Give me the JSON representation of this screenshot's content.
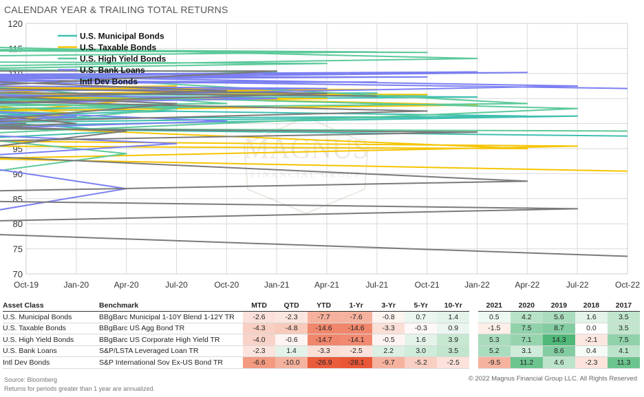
{
  "title": "CALENDAR YEAR & TRAILING TOTAL RETURNS",
  "watermark": {
    "line1": "MAGNUS",
    "line2": "FINANCIAL GROUP"
  },
  "chart_data": {
    "type": "line",
    "ylim": [
      70,
      120
    ],
    "yticks": [
      70,
      75,
      80,
      85,
      90,
      95,
      100,
      105,
      110,
      115,
      120
    ],
    "xticks": [
      "Oct-19",
      "Jan-20",
      "Apr-20",
      "Jul-20",
      "Oct-20",
      "Jan-21",
      "Apr-21",
      "Jul-21",
      "Oct-21",
      "Jan-22",
      "Apr-22",
      "Jul-22",
      "Oct-22"
    ],
    "grid": true,
    "legend_position": "top-left",
    "series": [
      {
        "name": "U.S.  Municipal Bonds",
        "color": "#3fbfb0",
        "x": [
          "Oct-19",
          "Nov-19",
          "Dec-19",
          "Jan-20",
          "Feb-20",
          "Mar-20",
          "Apr-20",
          "May-20",
          "Jun-20",
          "Jul-20",
          "Aug-20",
          "Sep-20",
          "Oct-20",
          "Nov-20",
          "Dec-20",
          "Jan-21",
          "Feb-21",
          "Mar-21",
          "Apr-21",
          "May-21",
          "Jun-21",
          "Jul-21",
          "Aug-21",
          "Sep-21",
          "Oct-21",
          "Nov-21",
          "Dec-21",
          "Jan-22",
          "Feb-22",
          "Mar-22",
          "Apr-22",
          "May-22",
          "Jun-22",
          "Jul-22",
          "Aug-22",
          "Sep-22",
          "Oct-22"
        ],
        "values": [
          100,
          100.3,
          100.6,
          101.5,
          102.2,
          97,
          98.5,
          100.5,
          101.5,
          102.5,
          102.8,
          103,
          103.3,
          104,
          104.6,
          105,
          104.9,
          104.8,
          105.2,
          105.5,
          105.8,
          106.1,
          106,
          105.8,
          105.7,
          105.8,
          106,
          105.3,
          104.6,
          103,
          101.5,
          100.2,
          99.5,
          101.5,
          101,
          99,
          97.5
        ]
      },
      {
        "name": "U.S. Taxable Bonds",
        "color": "#f5c400",
        "x": [
          "Oct-19",
          "Nov-19",
          "Dec-19",
          "Jan-20",
          "Feb-20",
          "Mar-20",
          "Apr-20",
          "May-20",
          "Jun-20",
          "Jul-20",
          "Aug-20",
          "Sep-20",
          "Oct-20",
          "Nov-20",
          "Dec-20",
          "Jan-21",
          "Feb-21",
          "Mar-21",
          "Apr-21",
          "May-21",
          "Jun-21",
          "Jul-21",
          "Aug-21",
          "Sep-21",
          "Oct-21",
          "Nov-21",
          "Dec-21",
          "Jan-22",
          "Feb-22",
          "Mar-22",
          "Apr-22",
          "May-22",
          "Jun-22",
          "Jul-22",
          "Aug-22",
          "Sep-22",
          "Oct-22"
        ],
        "values": [
          100,
          100,
          100.2,
          102,
          103.8,
          102,
          104.5,
          105.5,
          106,
          107.5,
          107,
          107.2,
          106.5,
          107.5,
          107.5,
          106.8,
          105.5,
          104.3,
          105,
          105.2,
          105.8,
          106.8,
          106.7,
          106,
          105.8,
          106,
          106,
          103.7,
          102.5,
          99.5,
          95,
          95.5,
          93,
          95.5,
          96.5,
          93,
          90.5
        ]
      },
      {
        "name": "U.S. High Yield Bonds",
        "color": "#5cc99a",
        "x": [
          "Oct-19",
          "Nov-19",
          "Dec-19",
          "Jan-20",
          "Feb-20",
          "Mar-20",
          "Apr-20",
          "May-20",
          "Jun-20",
          "Jul-20",
          "Aug-20",
          "Sep-20",
          "Oct-20",
          "Nov-20",
          "Dec-20",
          "Jan-21",
          "Feb-21",
          "Mar-21",
          "Apr-21",
          "May-21",
          "Jun-21",
          "Jul-21",
          "Aug-21",
          "Sep-21",
          "Oct-21",
          "Nov-21",
          "Dec-21",
          "Jan-22",
          "Feb-22",
          "Mar-22",
          "Apr-22",
          "May-22",
          "Jun-22",
          "Jul-22",
          "Aug-22",
          "Sep-22",
          "Oct-22"
        ],
        "values": [
          100,
          100.3,
          101,
          102,
          102.5,
          90,
          94,
          97,
          99.5,
          103,
          104.2,
          103.5,
          104,
          107.5,
          109,
          110.3,
          110.8,
          111,
          112,
          112.3,
          113.5,
          114.3,
          114.8,
          114.5,
          114.2,
          114.8,
          115.3,
          113,
          111.5,
          110,
          104,
          103,
          98,
          103,
          106,
          99,
          98.5
        ]
      },
      {
        "name": "U.S. Bank Loans",
        "color": "#7b7ff2",
        "x": [
          "Oct-19",
          "Nov-19",
          "Dec-19",
          "Jan-20",
          "Feb-20",
          "Mar-20",
          "Apr-20",
          "May-20",
          "Jun-20",
          "Jul-20",
          "Aug-20",
          "Sep-20",
          "Oct-20",
          "Nov-20",
          "Dec-20",
          "Jan-21",
          "Feb-21",
          "Mar-21",
          "Apr-21",
          "May-21",
          "Jun-21",
          "Jul-21",
          "Aug-21",
          "Sep-21",
          "Oct-21",
          "Nov-21",
          "Dec-21",
          "Jan-22",
          "Feb-22",
          "Mar-22",
          "Apr-22",
          "May-22",
          "Jun-22",
          "Jul-22",
          "Aug-22",
          "Sep-22",
          "Oct-22"
        ],
        "values": [
          100,
          100.3,
          100.5,
          101.3,
          101.6,
          82,
          87,
          91.5,
          93.5,
          96,
          97.7,
          99,
          100.5,
          102.5,
          104,
          105,
          105.8,
          106.5,
          107,
          107.5,
          108,
          108.3,
          108.5,
          108.9,
          109.3,
          109.3,
          109.8,
          110.3,
          109.7,
          109.5,
          110.2,
          109,
          105.3,
          107.5,
          109.5,
          108.8,
          107
        ]
      },
      {
        "name": "Intl Dev Bonds",
        "color": "#7a7a7a",
        "x": [
          "Oct-19",
          "Nov-19",
          "Dec-19",
          "Jan-20",
          "Feb-20",
          "Mar-20",
          "Apr-20",
          "May-20",
          "Jun-20",
          "Jul-20",
          "Aug-20",
          "Sep-20",
          "Oct-20",
          "Nov-20",
          "Dec-20",
          "Jan-21",
          "Feb-21",
          "Mar-21",
          "Apr-21",
          "May-21",
          "Jun-21",
          "Jul-21",
          "Aug-21",
          "Sep-21",
          "Oct-21",
          "Nov-21",
          "Dec-21",
          "Jan-22",
          "Feb-22",
          "Mar-22",
          "Apr-22",
          "May-22",
          "Jun-22",
          "Jul-22",
          "Aug-22",
          "Sep-22",
          "Oct-22"
        ],
        "values": [
          100,
          99.5,
          99.2,
          100,
          102,
          95,
          98.5,
          99.5,
          100.5,
          104,
          105.5,
          105,
          106.5,
          108.5,
          110.5,
          110.5,
          107.5,
          104,
          106,
          107,
          106.2,
          105.5,
          106.2,
          104.5,
          102.5,
          100.3,
          99,
          98.3,
          96.5,
          93.5,
          88.5,
          86.5,
          80.5,
          83,
          84.5,
          78,
          73.5
        ]
      }
    ]
  },
  "table": {
    "headers": [
      "Asset Class",
      "Benchmark",
      "MTD",
      "QTD",
      "YTD",
      "1-Yr",
      "3-Yr",
      "5-Yr",
      "10-Yr",
      "2021",
      "2020",
      "2019",
      "2018",
      "2017"
    ],
    "rows": [
      {
        "asset": "U.S. Municipal Bonds",
        "benchmark": "BBgBarc Municipal 1-10Y Blend 1-12Y TR",
        "values": [
          "-2.6",
          "-2.3",
          "-7.7",
          "-7.6",
          "-0.8",
          "0.7",
          "1.4",
          "0.5",
          "4.2",
          "5.6",
          "1.6",
          "3.5"
        ],
        "colors": [
          "#fbe1d9",
          "#fbe6df",
          "#f5b19d",
          "#f5b29e",
          "#fdf3ef",
          "#eaf6ef",
          "#e3f3e9",
          "#eef8f2",
          "#b9e3c8",
          "#aadcbe",
          "#e3f3e9",
          "#c1e6cd"
        ]
      },
      {
        "asset": "U.S. Taxable Bonds",
        "benchmark": "BBgBarc US Agg Bond TR",
        "values": [
          "-4.3",
          "-4.8",
          "-14.6",
          "-14.6",
          "-3.3",
          "-0.3",
          "0.9",
          "-1.5",
          "7.5",
          "8.7",
          "0.0",
          "3.5"
        ],
        "colors": [
          "#f8cfc2",
          "#f7cab9",
          "#f0876c",
          "#f0876c",
          "#fbdfd6",
          "#fef8f6",
          "#eaf6ef",
          "#fdeee8",
          "#91d2ab",
          "#84cca2",
          "#ffffff",
          "#c1e6cd"
        ]
      },
      {
        "asset": "U.S. High Yield Bonds",
        "benchmark": "BBgBarc US Corporate High Yield TR",
        "values": [
          "-4.0",
          "-0.6",
          "-14.7",
          "-14.1",
          "-0.5",
          "1.6",
          "3.9",
          "5.3",
          "7.1",
          "14.3",
          "-2.1",
          "7.5"
        ],
        "colors": [
          "#f9d3c7",
          "#fef4f1",
          "#f0866b",
          "#f18a70",
          "#fef5f2",
          "#e3f3e9",
          "#c6e8d1",
          "#a9dbbd",
          "#96d4ae",
          "#4fb878",
          "#fce7e0",
          "#91d2ab"
        ]
      },
      {
        "asset": "U.S. Bank Loans",
        "benchmark": "S&P/LSTA Leveraged Loan TR",
        "values": [
          "-2.3",
          "1.4",
          "-3.3",
          "-2.5",
          "2.2",
          "3.0",
          "3.5",
          "5.2",
          "3.1",
          "8.6",
          "0.4",
          "4.1"
        ],
        "colors": [
          "#fce3dc",
          "#e4f3ea",
          "#fbdfd6",
          "#fce2da",
          "#dbefe2",
          "#cfebd9",
          "#c1e6cd",
          "#aadcbe",
          "#cfebd9",
          "#84cca2",
          "#f5fbf7",
          "#bce4cb"
        ]
      },
      {
        "asset": "Intl Dev Bonds",
        "benchmark": "S&P International Sov Ex-US Bond TR",
        "values": [
          "-6.6",
          "-10.0",
          "-26.9",
          "-28.1",
          "-9.7",
          "-5.2",
          "-2.5",
          "-9.5",
          "11.2",
          "4.6",
          "-2.3",
          "11.3"
        ],
        "colors": [
          "#f39a81",
          "#f5b29e",
          "#ea5c3b",
          "#e95736",
          "#f5b29e",
          "#f8cfc2",
          "#fce2da",
          "#f5b29e",
          "#6cc48f",
          "#bce4cb",
          "#fce3dc",
          "#6bc48e"
        ]
      }
    ]
  },
  "footer": {
    "source": "Source: Bloomberg",
    "note": "Returns for periods greater than 1 year are annualized.",
    "copyright": "© 2022 Magnus Financial Group LLC. All Rights Reserved"
  }
}
